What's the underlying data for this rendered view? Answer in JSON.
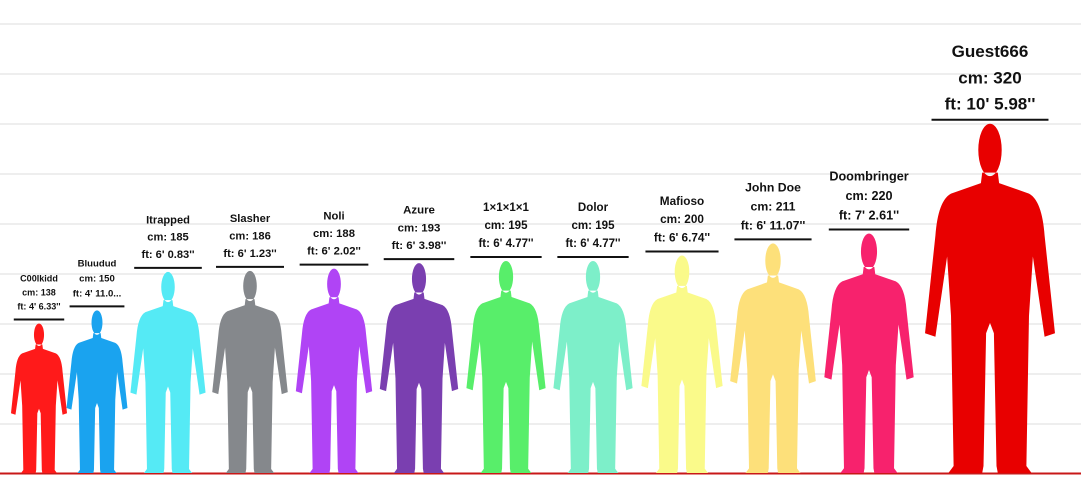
{
  "chart_data": {
    "type": "height-comparison",
    "categories": [
      "C00lkidd",
      "Bluudud",
      "Itrapped",
      "Slasher",
      "Noli",
      "Azure",
      "1×1×1×1",
      "Dolor",
      "Mafioso",
      "John Doe",
      "Doombringer",
      "Guest666"
    ],
    "values": [
      138,
      150,
      185,
      186,
      188,
      193,
      195,
      195,
      200,
      211,
      220,
      320
    ],
    "value_labels": [
      "cm: 138",
      "cm: 150",
      "cm: 185",
      "cm: 186",
      "cm: 188",
      "cm: 193",
      "cm: 195",
      "cm: 195",
      "cm: 200",
      "cm: 211",
      "cm: 220",
      "cm: 320"
    ],
    "ft_labels": [
      "ft: 4' 6.33''",
      "ft: 4' 11.0...",
      "ft: 6' 0.83''",
      "ft: 6' 1.23''",
      "ft: 6' 2.02''",
      "ft: 6' 3.98''",
      "ft: 6' 4.77''",
      "ft: 6' 4.77''",
      "ft: 6' 6.74''",
      "ft: 6' 11.07''",
      "ft: 7' 2.61''",
      "ft: 10' 5.98''"
    ],
    "colors": [
      "#ff1a1a",
      "#1aa3ef",
      "#55eaf5",
      "#85888c",
      "#b044f5",
      "#7a3fb0",
      "#58ee6a",
      "#7defc9",
      "#fafa8a",
      "#fde07a",
      "#f7226d",
      "#e80000"
    ],
    "ylim": [
      0,
      430
    ]
  }
}
